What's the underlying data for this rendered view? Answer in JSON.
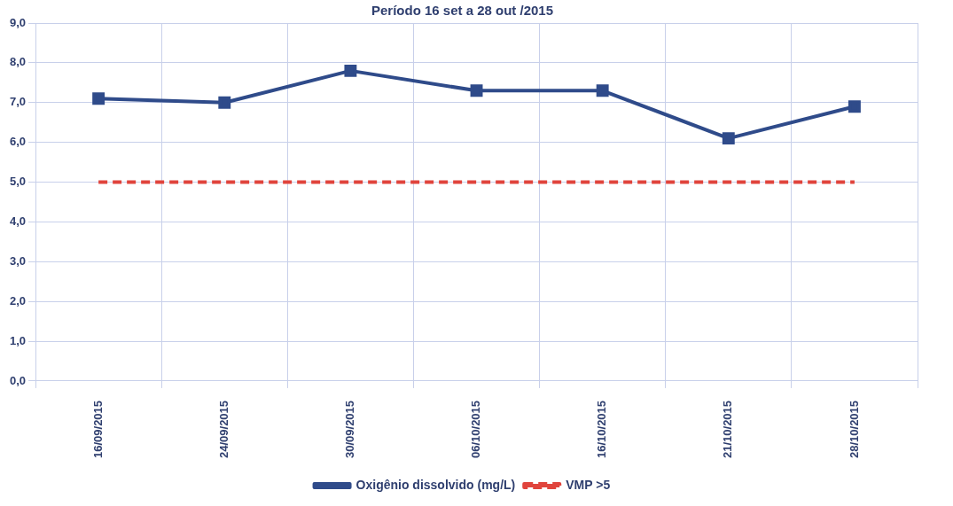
{
  "chart_data": {
    "type": "line",
    "title": "Período 16 set a 28 out /2015",
    "categories": [
      "16/09/2015",
      "24/09/2015",
      "30/09/2015",
      "06/10/2015",
      "16/10/2015",
      "21/10/2015",
      "28/10/2015"
    ],
    "series": [
      {
        "name": "Oxigênio dissolvido (mg/L)",
        "color": "#2f4b8a",
        "values": [
          7.1,
          7.0,
          7.8,
          7.3,
          7.3,
          6.1,
          6.9
        ],
        "marker": "square",
        "line_style": "solid"
      },
      {
        "name": "VMP >5",
        "color": "#e0443c",
        "values": [
          5.0,
          5.0,
          5.0,
          5.0,
          5.0,
          5.0,
          5.0
        ],
        "marker": "none",
        "line_style": "dashed"
      }
    ],
    "ylim": [
      0,
      9
    ],
    "yticks": [
      {
        "value": 0,
        "label": "0,0"
      },
      {
        "value": 1,
        "label": "1,0"
      },
      {
        "value": 2,
        "label": "2,0"
      },
      {
        "value": 3,
        "label": "3,0"
      },
      {
        "value": 4,
        "label": "4,0"
      },
      {
        "value": 5,
        "label": "5,0"
      },
      {
        "value": 6,
        "label": "6,0"
      },
      {
        "value": 7,
        "label": "7,0"
      },
      {
        "value": 8,
        "label": "8,0"
      },
      {
        "value": 9,
        "label": "9,0"
      }
    ],
    "grid": true,
    "legend": "bottom"
  }
}
